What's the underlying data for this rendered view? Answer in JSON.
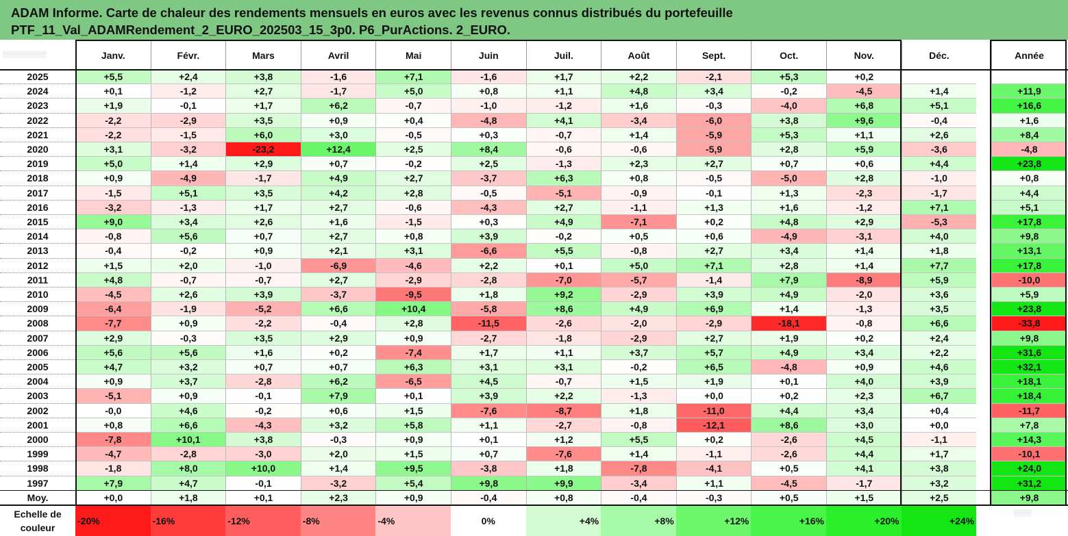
{
  "title": {
    "line1": "ADAM Informe. Carte de chaleur des rendements mensuels en euros avec les revenus connus distribués du portefeuille",
    "line2": "PTF_11_Val_ADAMRendement_2_EURO_202503_15_3p0. P6_PurActions. 2_EURO."
  },
  "chart_data": {
    "type": "heatmap",
    "columns": [
      "Janv.",
      "Févr.",
      "Mars",
      "Avril",
      "Mai",
      "Juin",
      "Juil.",
      "Août",
      "Sept.",
      "Oct.",
      "Nov.",
      "Déc."
    ],
    "annual_column": "Année",
    "rows": [
      {
        "year": "2025",
        "months": [
          "+5,5",
          "+2,4",
          "+3,8",
          "-1,6",
          "+7,1",
          "-1,6",
          "+1,7",
          "+2,2",
          "-2,1",
          "+5,3",
          "+0,2",
          ""
        ],
        "annual": ""
      },
      {
        "year": "2024",
        "months": [
          "+0,1",
          "-1,2",
          "+2,7",
          "-1,7",
          "+5,0",
          "+0,8",
          "+1,1",
          "+4,8",
          "+3,4",
          "-0,2",
          "-4,5",
          "+1,4"
        ],
        "annual": "+11,9"
      },
      {
        "year": "2023",
        "months": [
          "+1,9",
          "-0,1",
          "+1,7",
          "+6,2",
          "-0,7",
          "-1,0",
          "-1,2",
          "+1,6",
          "-0,3",
          "-4,0",
          "+6,8",
          "+5,1"
        ],
        "annual": "+16,6"
      },
      {
        "year": "2022",
        "months": [
          "-2,2",
          "-2,9",
          "+3,5",
          "+0,9",
          "+0,4",
          "-4,8",
          "+4,1",
          "-3,4",
          "-6,0",
          "+3,8",
          "+9,6",
          "-0,4"
        ],
        "annual": "+1,6"
      },
      {
        "year": "2021",
        "months": [
          "-2,2",
          "-1,5",
          "+6,0",
          "+3,0",
          "-0,5",
          "+0,3",
          "-0,7",
          "+1,4",
          "-5,9",
          "+5,3",
          "+1,1",
          "+2,6"
        ],
        "annual": "+8,4"
      },
      {
        "year": "2020",
        "months": [
          "+3,1",
          "-3,2",
          "-23,2",
          "+12,4",
          "+2,5",
          "+8,4",
          "-0,6",
          "-0,6",
          "-5,9",
          "+2,8",
          "+5,9",
          "-3,6"
        ],
        "annual": "-4,8"
      },
      {
        "year": "2019",
        "months": [
          "+5,0",
          "+1,4",
          "+2,9",
          "+0,7",
          "-0,2",
          "+2,5",
          "-1,3",
          "+2,3",
          "+2,7",
          "+0,7",
          "+0,6",
          "+4,4"
        ],
        "annual": "+23,8"
      },
      {
        "year": "2018",
        "months": [
          "+0,9",
          "-4,9",
          "-1,7",
          "+4,9",
          "+2,7",
          "-3,7",
          "+6,3",
          "+0,8",
          "-0,5",
          "-5,0",
          "+2,8",
          "-1,0"
        ],
        "annual": "+0,8"
      },
      {
        "year": "2017",
        "months": [
          "-1,5",
          "+5,1",
          "+3,5",
          "+4,2",
          "+2,8",
          "-0,5",
          "-5,1",
          "-0,9",
          "-0,1",
          "+1,3",
          "-2,3",
          "-1,7"
        ],
        "annual": "+4,4"
      },
      {
        "year": "2016",
        "months": [
          "-3,2",
          "-1,3",
          "+1,7",
          "+2,7",
          "-0,6",
          "-4,3",
          "+2,7",
          "-1,1",
          "+1,3",
          "+1,6",
          "-1,2",
          "+7,1"
        ],
        "annual": "+5,1"
      },
      {
        "year": "2015",
        "months": [
          "+9,0",
          "+3,4",
          "+2,6",
          "+1,6",
          "-1,5",
          "+0,3",
          "+4,9",
          "-7,1",
          "+0,2",
          "+4,8",
          "+2,9",
          "-5,3"
        ],
        "annual": "+17,8"
      },
      {
        "year": "2014",
        "months": [
          "-0,8",
          "+5,6",
          "+0,7",
          "+2,7",
          "+0,8",
          "+3,9",
          "-0,2",
          "+0,5",
          "+0,6",
          "-4,9",
          "-3,1",
          "+4,0"
        ],
        "annual": "+9,8"
      },
      {
        "year": "2013",
        "months": [
          "-0,4",
          "-0,2",
          "+0,9",
          "+2,1",
          "+3,1",
          "-6,6",
          "+5,5",
          "-0,8",
          "+2,7",
          "+3,4",
          "+1,4",
          "+1,8"
        ],
        "annual": "+13,1"
      },
      {
        "year": "2012",
        "months": [
          "+1,5",
          "+2,0",
          "-1,0",
          "-6,9",
          "-4,6",
          "+2,2",
          "+0,1",
          "+5,0",
          "+7,1",
          "+2,8",
          "+1,4",
          "+7,7"
        ],
        "annual": "+17,8"
      },
      {
        "year": "2011",
        "months": [
          "+4,8",
          "-0,7",
          "-0,7",
          "+2,7",
          "-2,9",
          "-2,8",
          "-7,0",
          "-5,7",
          "-1,4",
          "+7,9",
          "-8,9",
          "+5,9"
        ],
        "annual": "-10,0"
      },
      {
        "year": "2010",
        "months": [
          "-4,5",
          "+2,6",
          "+3,9",
          "-3,7",
          "-9,5",
          "+1,8",
          "+9,2",
          "-2,9",
          "+3,9",
          "+4,9",
          "-2,0",
          "+3,6"
        ],
        "annual": "+5,9"
      },
      {
        "year": "2009",
        "months": [
          "-6,4",
          "-1,9",
          "-5,2",
          "+6,6",
          "+10,4",
          "-5,8",
          "+8,6",
          "+4,9",
          "+6,9",
          "+1,4",
          "-1,3",
          "+3,5"
        ],
        "annual": "+23,8"
      },
      {
        "year": "2008",
        "months": [
          "-7,7",
          "+0,9",
          "-2,2",
          "-0,4",
          "+2,8",
          "-11,5",
          "-2,6",
          "-2,0",
          "-2,9",
          "-18,1",
          "-0,8",
          "+6,6"
        ],
        "annual": "-33,8"
      },
      {
        "year": "2007",
        "months": [
          "+2,9",
          "-0,3",
          "+3,5",
          "+2,9",
          "+0,9",
          "-2,7",
          "-1,8",
          "-2,9",
          "+2,7",
          "+1,9",
          "+0,2",
          "+2,4"
        ],
        "annual": "+9,8"
      },
      {
        "year": "2006",
        "months": [
          "+5,6",
          "+5,6",
          "+1,6",
          "+0,2",
          "-7,4",
          "+1,7",
          "+1,1",
          "+3,7",
          "+5,7",
          "+4,9",
          "+3,4",
          "+2,2"
        ],
        "annual": "+31,6"
      },
      {
        "year": "2005",
        "months": [
          "+4,7",
          "+3,2",
          "+0,7",
          "+0,7",
          "+6,3",
          "+3,1",
          "+3,1",
          "-0,2",
          "+6,5",
          "-4,8",
          "+0,9",
          "+4,6"
        ],
        "annual": "+32,1"
      },
      {
        "year": "2004",
        "months": [
          "+0,9",
          "+3,7",
          "-2,8",
          "+6,2",
          "-6,5",
          "+4,5",
          "-0,7",
          "+1,5",
          "+1,9",
          "+0,1",
          "+4,0",
          "+3,9"
        ],
        "annual": "+18,1"
      },
      {
        "year": "2003",
        "months": [
          "-5,1",
          "+0,9",
          "-0,1",
          "+7,9",
          "+0,1",
          "+3,9",
          "+2,2",
          "-1,3",
          "+0,0",
          "+0,2",
          "+2,3",
          "+6,7"
        ],
        "annual": "+18,4"
      },
      {
        "year": "2002",
        "months": [
          "-0,0",
          "+4,6",
          "-0,2",
          "+0,6",
          "+1,5",
          "-7,6",
          "-8,7",
          "+1,8",
          "-11,0",
          "+4,4",
          "+3,4",
          "+0,4"
        ],
        "annual": "-11,7"
      },
      {
        "year": "2001",
        "months": [
          "+0,8",
          "+6,6",
          "-4,3",
          "+3,2",
          "+5,8",
          "+1,1",
          "-2,7",
          "-0,8",
          "-12,1",
          "+8,6",
          "+3,0",
          "+0,0"
        ],
        "annual": "+7,8"
      },
      {
        "year": "2000",
        "months": [
          "-7,8",
          "+10,1",
          "+3,8",
          "-0,3",
          "+0,9",
          "+0,1",
          "+1,2",
          "+5,5",
          "+0,2",
          "-2,6",
          "+4,5",
          "-1,1"
        ],
        "annual": "+14,3"
      },
      {
        "year": "1999",
        "months": [
          "-4,7",
          "-2,8",
          "-3,0",
          "+2,0",
          "+1,5",
          "+0,7",
          "-7,6",
          "+1,4",
          "-1,1",
          "-2,6",
          "+4,4",
          "+1,7"
        ],
        "annual": "-10,1"
      },
      {
        "year": "1998",
        "months": [
          "-1,8",
          "+8,0",
          "+10,0",
          "+1,4",
          "+9,5",
          "-3,8",
          "+1,8",
          "-7,8",
          "-4,1",
          "+0,5",
          "+4,1",
          "+3,8"
        ],
        "annual": "+24,0"
      },
      {
        "year": "1997",
        "months": [
          "+7,9",
          "+4,7",
          "-0,1",
          "-3,2",
          "+5,4",
          "+9,8",
          "+9,9",
          "-3,4",
          "+1,1",
          "-4,5",
          "-1,7",
          "+3,2"
        ],
        "annual": "+31,2"
      },
      {
        "year": "Moy.",
        "months": [
          "+0,0",
          "+1,8",
          "+0,1",
          "+2,3",
          "+0,9",
          "-0,4",
          "+0,8",
          "-0,4",
          "-0,3",
          "+0,5",
          "+1,5",
          "+2,5"
        ],
        "annual": "+9,8"
      }
    ],
    "color_scale": {
      "label_line1": "Echelle de",
      "label_line2": "couleur",
      "stops": [
        {
          "label": "-20%",
          "value": -20,
          "color": "#ff1a1a"
        },
        {
          "label": "-16%",
          "value": -16,
          "color": "#ff3c3c"
        },
        {
          "label": "-12%",
          "value": -12,
          "color": "#ff5e5e"
        },
        {
          "label": "-8%",
          "value": -8,
          "color": "#ff8585"
        },
        {
          "label": "-4%",
          "value": -4,
          "color": "#ffc4c4"
        },
        {
          "label": "0%",
          "value": 0,
          "color": "#ffffff"
        },
        {
          "label": "+4%",
          "value": 4,
          "color": "#d2fbd2"
        },
        {
          "label": "+8%",
          "value": 8,
          "color": "#a6f9a6"
        },
        {
          "label": "+12%",
          "value": 12,
          "color": "#6cf76c"
        },
        {
          "label": "+16%",
          "value": 16,
          "color": "#49f549"
        },
        {
          "label": "+20%",
          "value": 20,
          "color": "#2aef2a"
        },
        {
          "label": "+24%",
          "value": 24,
          "color": "#14e614"
        }
      ]
    }
  }
}
